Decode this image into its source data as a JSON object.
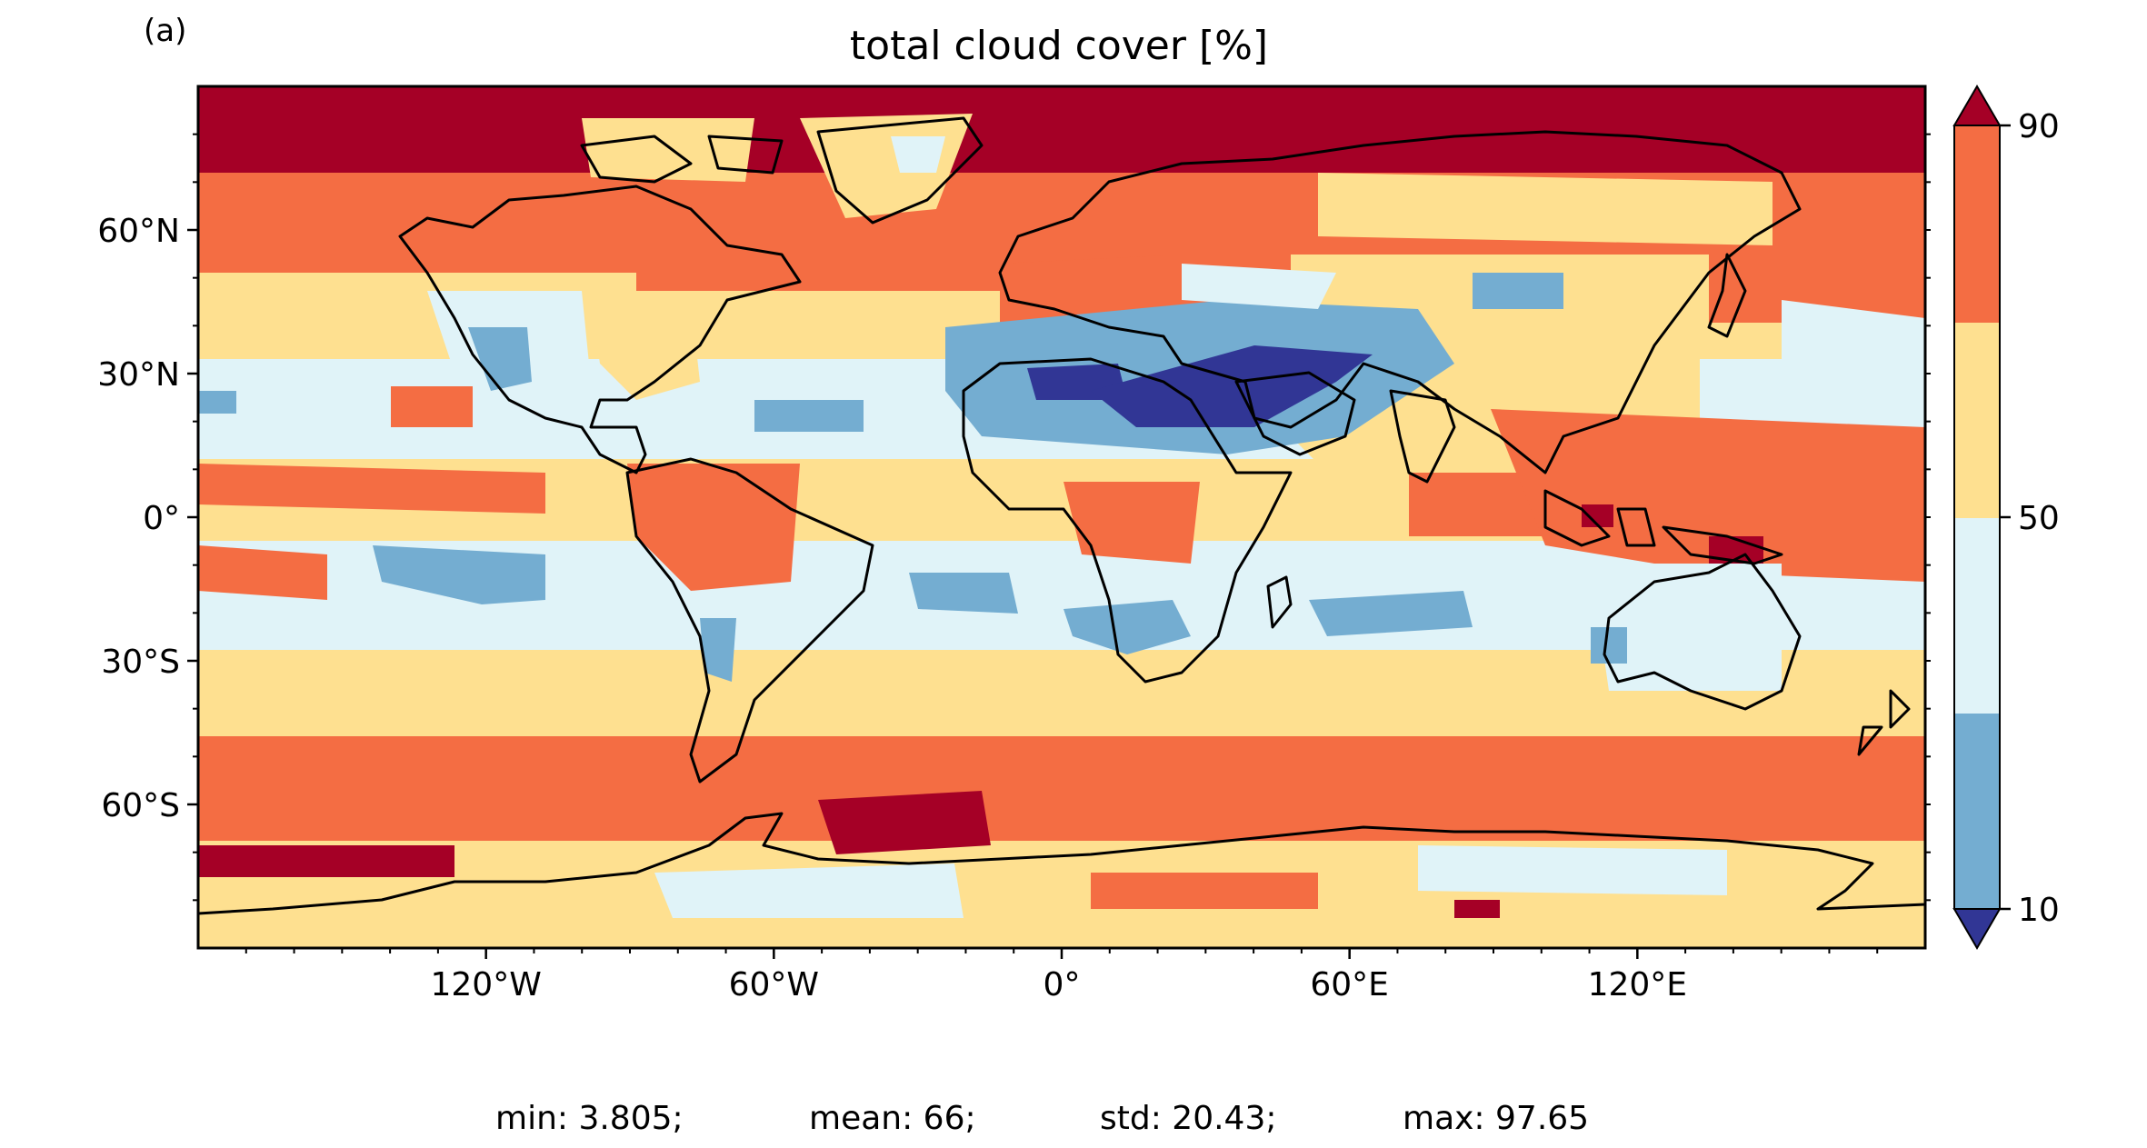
{
  "panel_label": "(a)",
  "title": "total cloud cover [%]",
  "stats": {
    "min": "min: 3.805;",
    "mean": "mean: 66;",
    "std": "std: 20.43;",
    "max": "max: 97.65"
  },
  "map": {
    "projection": "PlateCarree",
    "lon_range": [
      -180,
      180
    ],
    "lat_range": [
      -90,
      90
    ],
    "coastlines": true,
    "x_ticks": [
      {
        "value": -120,
        "label": "120°W"
      },
      {
        "value": -60,
        "label": "60°W"
      },
      {
        "value": 0,
        "label": "0°"
      },
      {
        "value": 60,
        "label": "60°E"
      },
      {
        "value": 120,
        "label": "120°E"
      }
    ],
    "y_ticks": [
      {
        "value": 60,
        "label": "60°N"
      },
      {
        "value": 30,
        "label": "30°N"
      },
      {
        "value": 0,
        "label": "0°"
      },
      {
        "value": -30,
        "label": "30°S"
      },
      {
        "value": -60,
        "label": "60°S"
      }
    ]
  },
  "colorbar": {
    "extend": "both",
    "ticks": [
      {
        "value": 90,
        "label": "90"
      },
      {
        "value": 50,
        "label": "50"
      },
      {
        "value": 10,
        "label": "10"
      }
    ],
    "levels": [
      10,
      30,
      50,
      70,
      90
    ],
    "colors": {
      "under": "#313695",
      "b10_30": "#74add1",
      "b30_50": "#e0f3f8",
      "b50_70": "#fee090",
      "b70_90": "#f46d43",
      "over": "#a50026"
    }
  }
}
